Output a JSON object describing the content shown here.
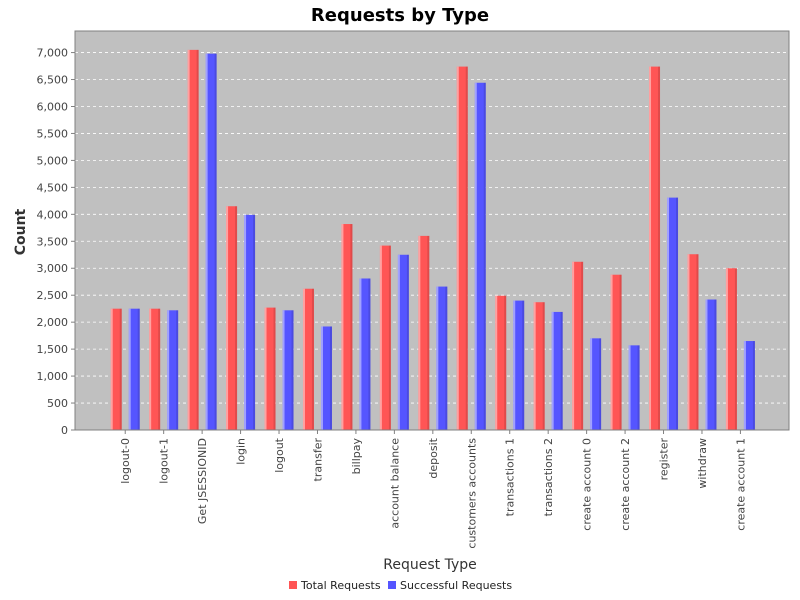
{
  "chart_data": {
    "type": "bar",
    "title": "Requests by Type",
    "xlabel": "Request Type",
    "ylabel": "Count",
    "ylim": [
      0,
      7400
    ],
    "yticks": [
      0,
      500,
      1000,
      1500,
      2000,
      2500,
      3000,
      3500,
      4000,
      4500,
      5000,
      5500,
      6000,
      6500,
      7000
    ],
    "ytick_labels": [
      "0",
      "500",
      "1,000",
      "1,500",
      "2,000",
      "2,500",
      "3,000",
      "3,500",
      "4,000",
      "4,500",
      "5,000",
      "5,500",
      "6,000",
      "6,500",
      "7,000"
    ],
    "grid": true,
    "legend_position": "bottom-center",
    "plot_background": "#c0c0c0",
    "categories": [
      "logout-0",
      "logout-1",
      "Get JSESSIONID",
      "login",
      "logout",
      "transfer",
      "billpay",
      "account balance",
      "deposit",
      "customers accounts",
      "transactions 1",
      "transactions 2",
      "create account 0",
      "create account 2",
      "register",
      "withdraw",
      "create account 1"
    ],
    "series": [
      {
        "name": "Total Requests",
        "color": "#ff5555",
        "values": [
          2250,
          2250,
          7050,
          4150,
          2270,
          2620,
          3820,
          3420,
          3600,
          6740,
          2490,
          2370,
          3120,
          2880,
          6740,
          3260,
          3000
        ]
      },
      {
        "name": "Successful Requests",
        "color": "#5555ff",
        "values": [
          2250,
          2220,
          6980,
          3990,
          2220,
          1920,
          2810,
          3250,
          2660,
          6440,
          2400,
          2190,
          1700,
          1570,
          4310,
          2420,
          1650
        ]
      }
    ]
  }
}
